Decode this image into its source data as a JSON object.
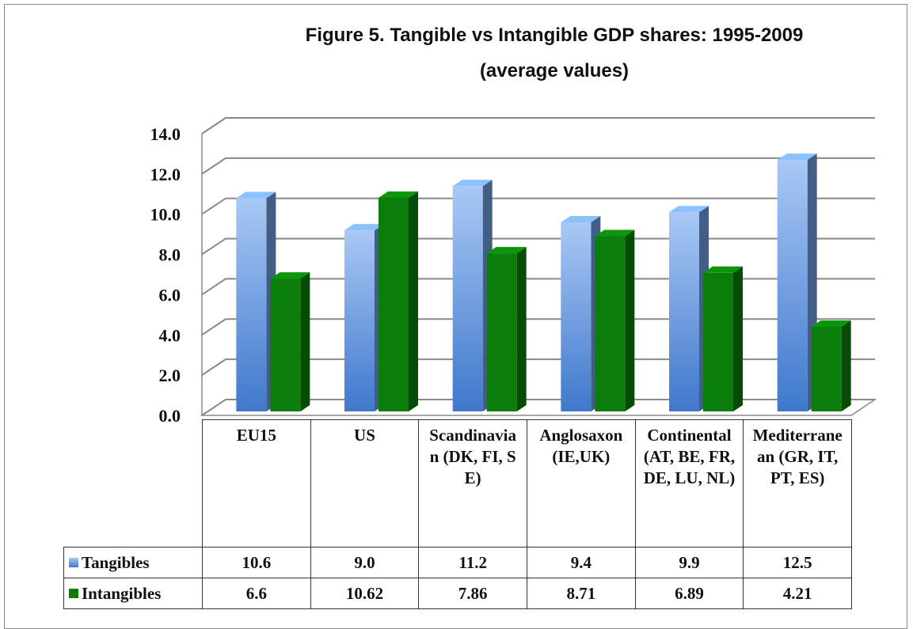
{
  "chart_data": {
    "type": "bar3d",
    "title": "Figure 5. Tangible vs Intangible GDP shares: 1995-2009",
    "subtitle": "(average values)",
    "categories": [
      "EU15",
      "US",
      "Scandinavian (DK, FI, SE)",
      "Anglosaxon (IE,UK)",
      "Continental (AT, BE, FR, DE, LU, NL)",
      "Mediterranean (GR, IT, PT, ES)"
    ],
    "series": [
      {
        "name": "Tangibles",
        "color": "#6e9be0",
        "values": [
          10.6,
          9.0,
          11.2,
          9.4,
          9.9,
          12.5
        ],
        "value_labels": [
          "10.6",
          "9.0",
          "11.2",
          "9.4",
          "9.9",
          "12.5"
        ]
      },
      {
        "name": "Intangibles",
        "color": "#0a7d0a",
        "values": [
          6.6,
          10.62,
          7.86,
          8.71,
          6.89,
          4.21
        ]
      }
    ],
    "ylim": [
      0,
      14
    ],
    "yticks": [
      {
        "value": 0,
        "label": "0.0"
      },
      {
        "value": 2,
        "label": "2.0"
      },
      {
        "value": 4,
        "label": "4.0"
      },
      {
        "value": 6,
        "label": "6.0"
      },
      {
        "value": 8,
        "label": "8.0"
      },
      {
        "value": 10,
        "label": "10.0"
      },
      {
        "value": 12,
        "label": "12.0"
      },
      {
        "value": 14,
        "label": "14.0"
      }
    ],
    "grid": true
  }
}
